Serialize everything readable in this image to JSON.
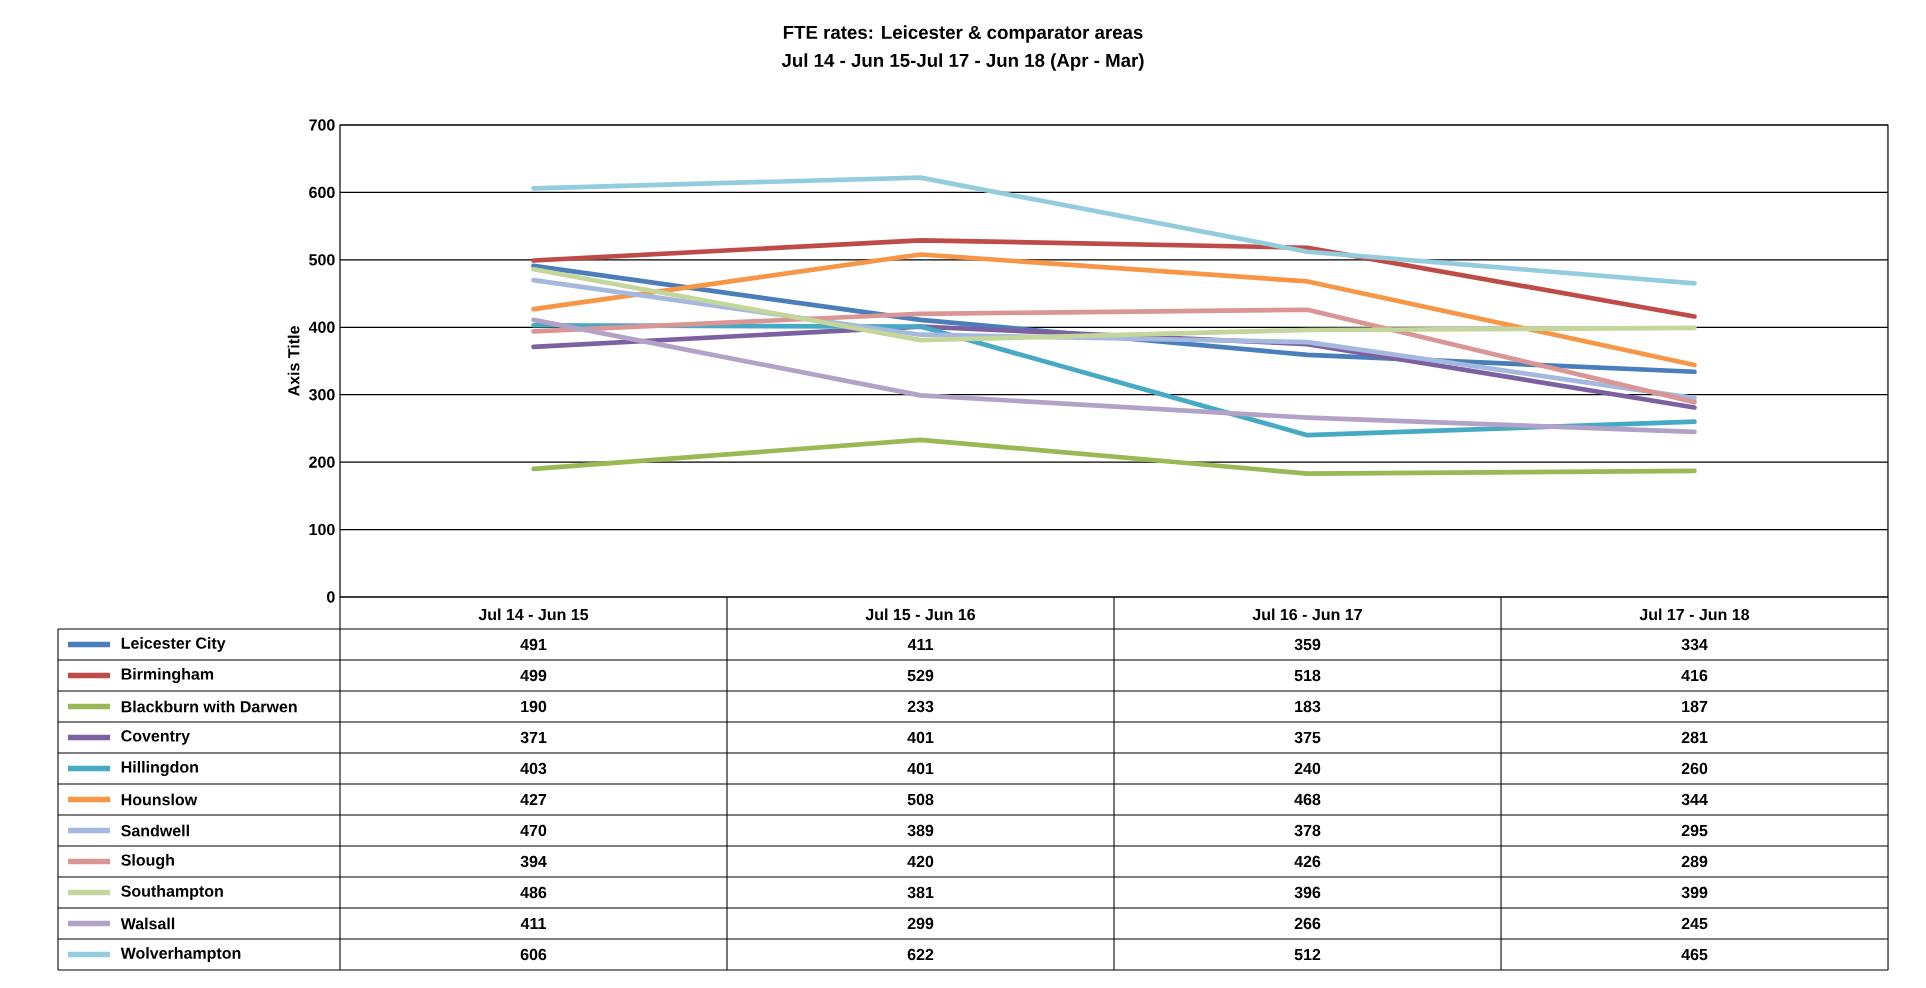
{
  "chart_data": {
    "type": "line",
    "title": "FTE rates: Leicester & comparator areas",
    "subtitle": "Jul 14 - Jun 15-Jul 17 - Jun 18 (Apr - Mar)",
    "ylabel": "Axis Title",
    "categories": [
      "Jul 14 - Jun 15",
      "Jul 15 - Jun 16",
      "Jul 16 - Jun 17",
      "Jul 17 - Jun 18"
    ],
    "ylim": [
      0,
      700
    ],
    "yticks": [
      0,
      100,
      200,
      300,
      400,
      500,
      600,
      700
    ],
    "grid": "y",
    "legend": "bottom",
    "data_labels": true,
    "series": [
      {
        "name": "Leicester City",
        "color": "#4a7ebb",
        "values": [
          491,
          411,
          359,
          334
        ]
      },
      {
        "name": "Birmingham",
        "color": "#be4b48",
        "values": [
          499,
          529,
          518,
          416
        ]
      },
      {
        "name": "Blackburn with Darwen",
        "color": "#98b954",
        "values": [
          190,
          233,
          183,
          187
        ]
      },
      {
        "name": "Coventry",
        "color": "#7d60a0",
        "values": [
          371,
          401,
          375,
          281
        ]
      },
      {
        "name": "Hillingdon",
        "color": "#46aac5",
        "values": [
          403,
          401,
          240,
          260
        ]
      },
      {
        "name": "Hounslow",
        "color": "#f79646",
        "values": [
          427,
          508,
          468,
          344
        ]
      },
      {
        "name": "Sandwell",
        "color": "#a5b9df",
        "values": [
          470,
          389,
          378,
          295
        ]
      },
      {
        "name": "Slough",
        "color": "#d99694",
        "values": [
          394,
          420,
          426,
          289
        ]
      },
      {
        "name": "Southampton",
        "color": "#c3d69b",
        "values": [
          486,
          381,
          396,
          399
        ]
      },
      {
        "name": "Walsall",
        "color": "#b3a2c7",
        "values": [
          411,
          299,
          266,
          245
        ]
      },
      {
        "name": "Wolverhampton",
        "color": "#93cddd",
        "values": [
          606,
          622,
          512,
          465
        ]
      }
    ]
  }
}
